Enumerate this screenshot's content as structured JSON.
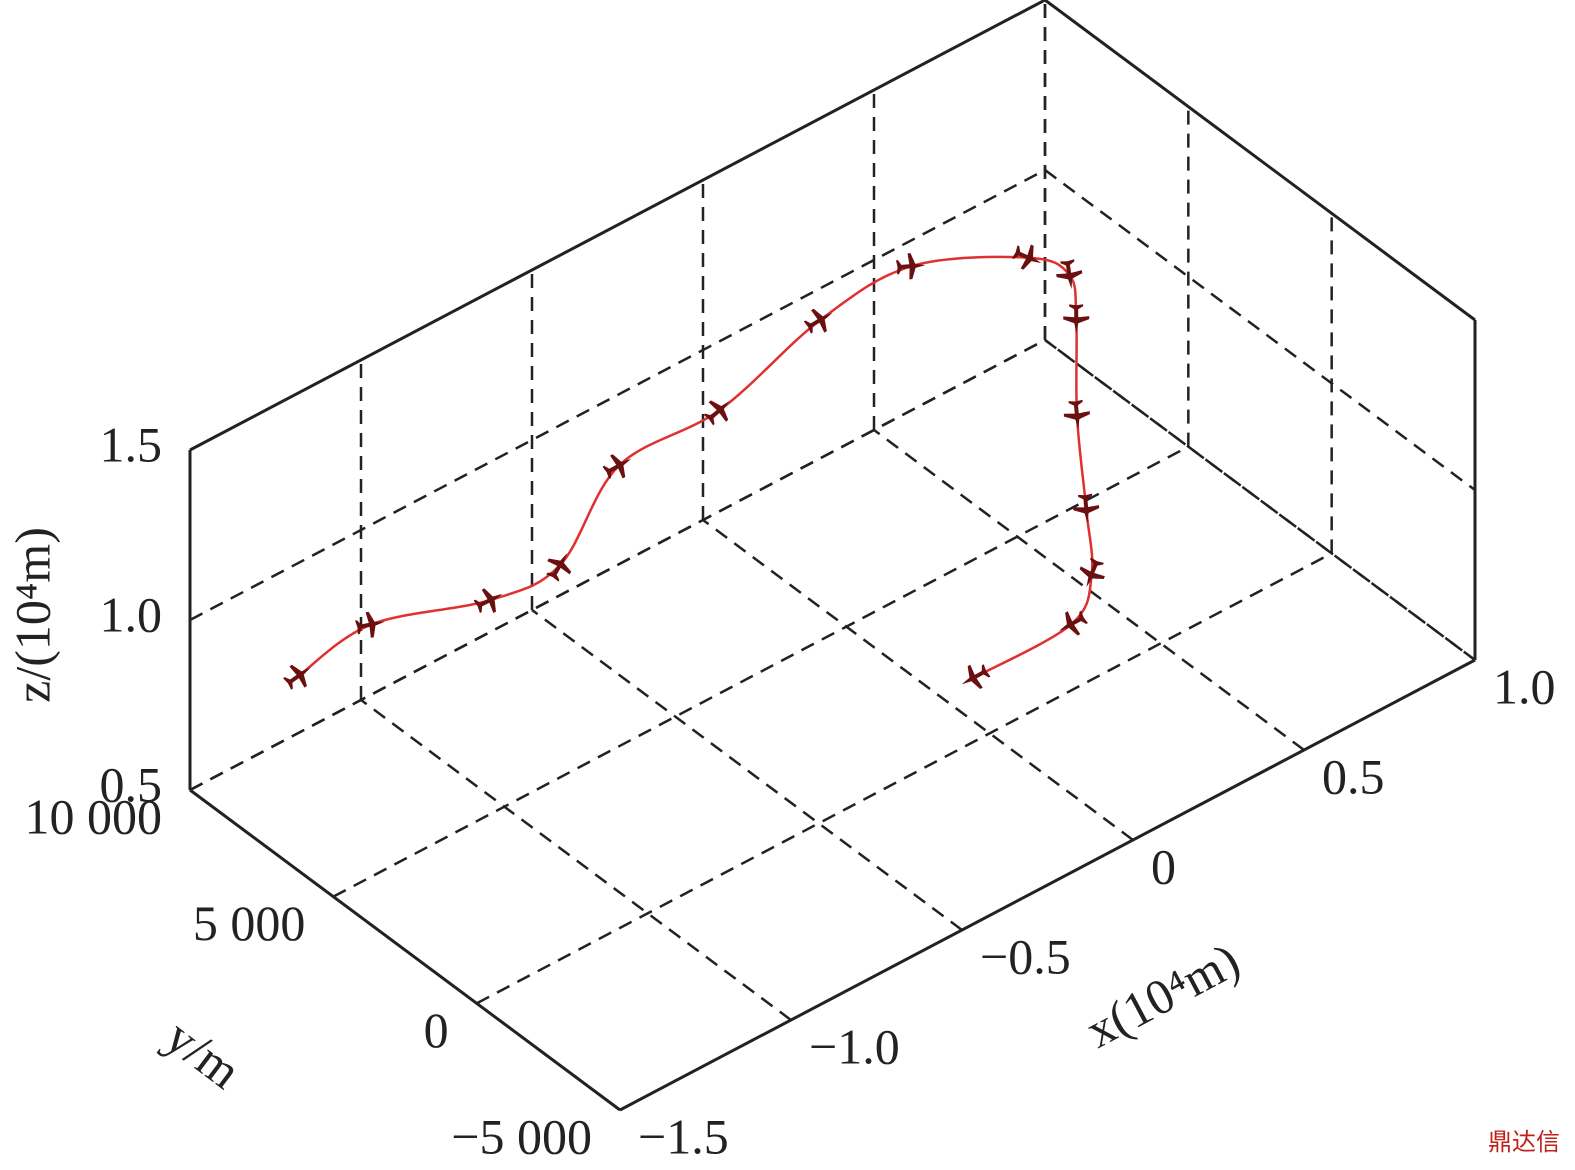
{
  "chart_data": {
    "type": "line3d",
    "xlabel": "x(10⁴m)",
    "ylabel": "y/m",
    "zlabel": "z/(10⁴m)",
    "watermark": "鼎达信",
    "xlim": [
      -1.5,
      1.0
    ],
    "xticks": [
      {
        "value": -1.5,
        "label": "−1.5"
      },
      {
        "value": -1.0,
        "label": "−1.0"
      },
      {
        "value": -0.5,
        "label": "−0.5"
      },
      0,
      0.5,
      {
        "value": 1.0,
        "label": "1.0"
      }
    ],
    "ylim": [
      -5000,
      10000
    ],
    "yticks": [
      {
        "value": -5000,
        "label": "−5 000"
      },
      0,
      {
        "value": 5000,
        "label": "5 000"
      },
      {
        "value": 10000,
        "label": "10 000"
      }
    ],
    "zlim": [
      0.5,
      1.5
    ],
    "zticks": [
      0.5,
      {
        "value": 1.0,
        "label": "1.0"
      },
      1.5
    ],
    "grid": true,
    "series": [
      {
        "color": "#e03030",
        "marker_color": "#6b1010",
        "x": [
          -1.44,
          -1.2,
          -0.94,
          -0.74,
          -0.41,
          -0.11,
          0.27,
          0.55,
          0.77,
          0.8,
          0.71,
          0.49,
          0.29,
          0.15,
          0.0,
          -0.29
        ],
        "y": [
          6900,
          7260,
          6210,
          6160,
          8040,
          8110,
          9130,
          9290,
          7830,
          6760,
          5450,
          2800,
          90,
          -1770,
          -2850,
          -2910
        ],
        "z": [
          1.0,
          1.0,
          1.0,
          1.0,
          1.0,
          1.0,
          1.0,
          1.0,
          1.0,
          1.0,
          1.0,
          1.0,
          1.0,
          1.0,
          1.0,
          1.0
        ]
      }
    ]
  }
}
